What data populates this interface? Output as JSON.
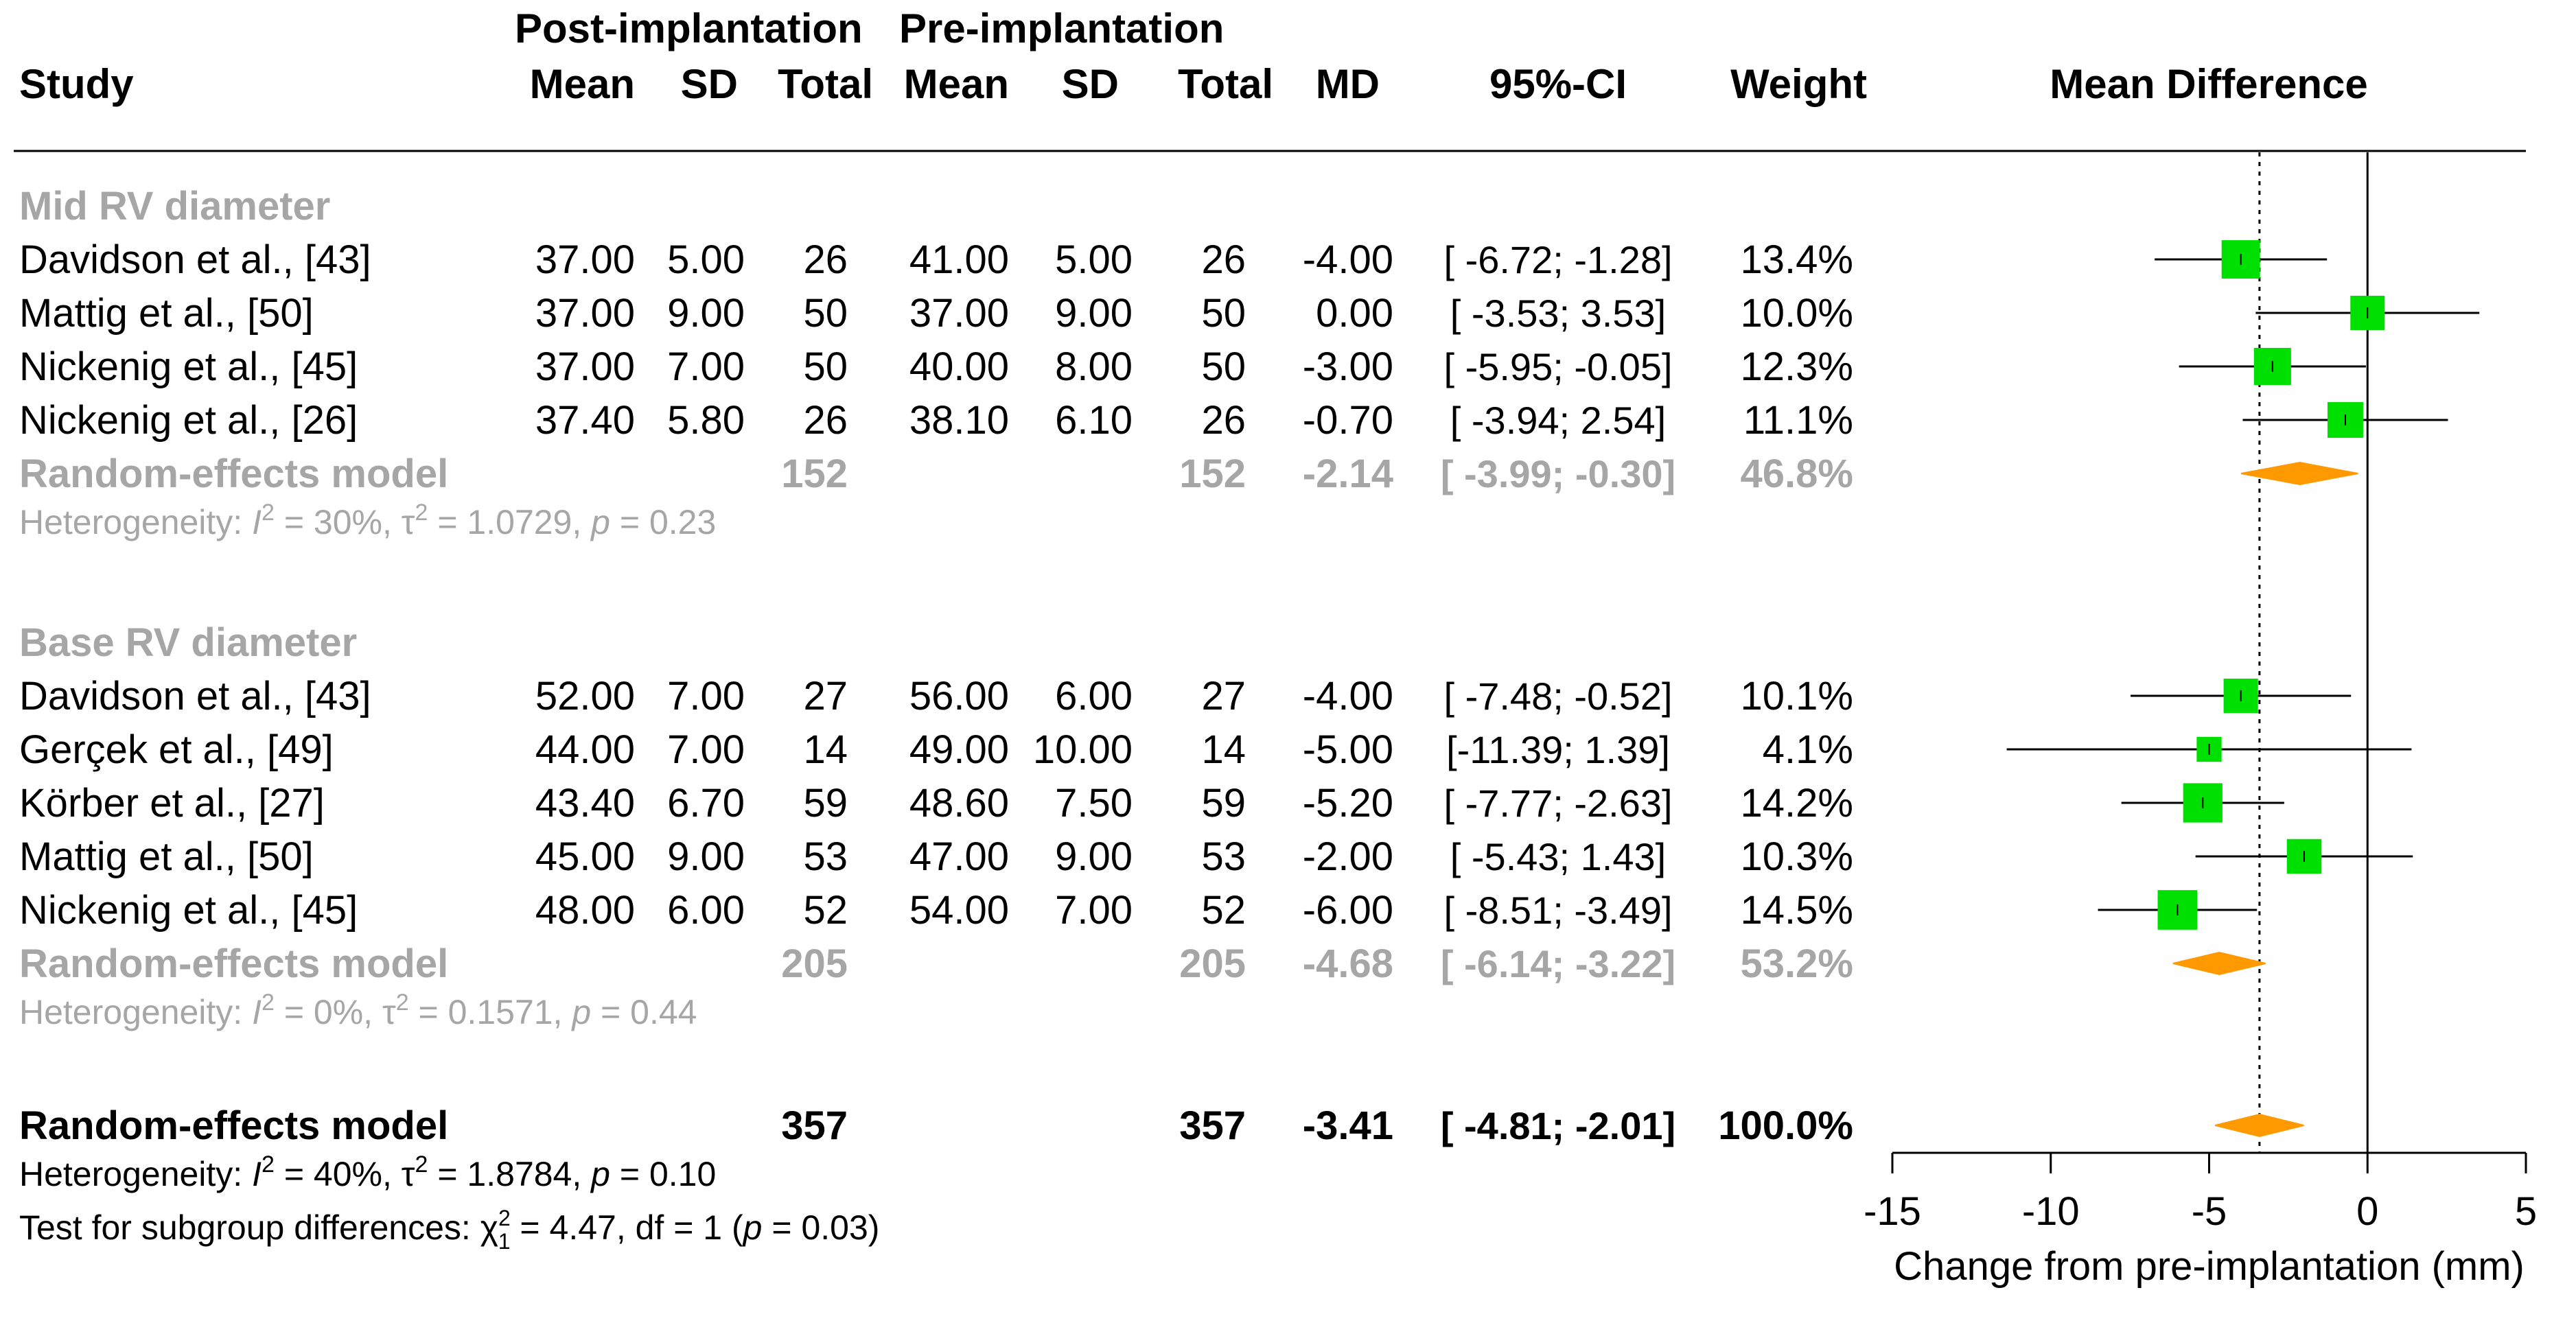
{
  "header": {
    "group_post": "Post-implantation",
    "group_pre": "Pre-implantation",
    "study": "Study",
    "mean_post": "Mean",
    "sd_post": "SD",
    "total_post": "Total",
    "mean_pre": "Mean",
    "sd_pre": "SD",
    "total_pre": "Total",
    "md": "MD",
    "ci": "95%-CI",
    "weight": "Weight",
    "plot_title": "Mean Difference"
  },
  "chart_data": {
    "type": "forest",
    "xlabel": "Change from pre-implantation (mm)",
    "xlim": [
      -15,
      5
    ],
    "xticks": [
      -15,
      -10,
      -5,
      0,
      5
    ],
    "null_line": 0,
    "overall_line": -3.41,
    "colors": {
      "study": "#00e000",
      "pooled": "#ff9900",
      "subgroup_text": "#a6a6a6",
      "text": "#000000"
    },
    "subgroups": [
      {
        "name": "Mid RV diameter",
        "studies": [
          {
            "study": "Davidson et al., [43]",
            "mean_post": "37.00",
            "sd_post": "5.00",
            "total_post": "26",
            "mean_pre": "41.00",
            "sd_pre": "5.00",
            "total_pre": "26",
            "md_text": "-4.00",
            "ci_text": "[ -6.72; -1.28]",
            "weight_text": "13.4%",
            "md": -4.0,
            "lo": -6.72,
            "hi": -1.28,
            "weight": 13.4
          },
          {
            "study": "Mattig et al., [50]",
            "mean_post": "37.00",
            "sd_post": "9.00",
            "total_post": "50",
            "mean_pre": "37.00",
            "sd_pre": "9.00",
            "total_pre": "50",
            "md_text": "0.00",
            "ci_text": "[ -3.53; 3.53]",
            "weight_text": "10.0%",
            "md": 0.0,
            "lo": -3.53,
            "hi": 3.53,
            "weight": 10.0
          },
          {
            "study": "Nickenig et al., [45]",
            "mean_post": "37.00",
            "sd_post": "7.00",
            "total_post": "50",
            "mean_pre": "40.00",
            "sd_pre": "8.00",
            "total_pre": "50",
            "md_text": "-3.00",
            "ci_text": "[ -5.95; -0.05]",
            "weight_text": "12.3%",
            "md": -3.0,
            "lo": -5.95,
            "hi": -0.05,
            "weight": 12.3
          },
          {
            "study": "Nickenig et al., [26]",
            "mean_post": "37.40",
            "sd_post": "5.80",
            "total_post": "26",
            "mean_pre": "38.10",
            "sd_pre": "6.10",
            "total_pre": "26",
            "md_text": "-0.70",
            "ci_text": "[ -3.94; 2.54]",
            "weight_text": "11.1%",
            "md": -0.7,
            "lo": -3.94,
            "hi": 2.54,
            "weight": 11.1
          }
        ],
        "pooled": {
          "label": "Random-effects model",
          "total_post": "152",
          "total_pre": "152",
          "md_text": "-2.14",
          "ci_text": "[ -3.99; -0.30]",
          "weight_text": "46.8%",
          "md": -2.14,
          "lo": -3.99,
          "hi": -0.3
        },
        "heterogeneity": {
          "prefix": "Heterogeneity: ",
          "i2": "30%",
          "tau2": "1.0729",
          "p": "0.23"
        }
      },
      {
        "name": "Base RV diameter",
        "studies": [
          {
            "study": "Davidson et al., [43]",
            "mean_post": "52.00",
            "sd_post": "7.00",
            "total_post": "27",
            "mean_pre": "56.00",
            "sd_pre": "6.00",
            "total_pre": "27",
            "md_text": "-4.00",
            "ci_text": "[ -7.48; -0.52]",
            "weight_text": "10.1%",
            "md": -4.0,
            "lo": -7.48,
            "hi": -0.52,
            "weight": 10.1
          },
          {
            "study": "Gerçek et al., [49]",
            "mean_post": "44.00",
            "sd_post": "7.00",
            "total_post": "14",
            "mean_pre": "49.00",
            "sd_pre": "10.00",
            "total_pre": "14",
            "md_text": "-5.00",
            "ci_text": "[-11.39; 1.39]",
            "weight_text": "4.1%",
            "md": -5.0,
            "lo": -11.39,
            "hi": 1.39,
            "weight": 4.1
          },
          {
            "study": "Körber et al., [27]",
            "mean_post": "43.40",
            "sd_post": "6.70",
            "total_post": "59",
            "mean_pre": "48.60",
            "sd_pre": "7.50",
            "total_pre": "59",
            "md_text": "-5.20",
            "ci_text": "[ -7.77; -2.63]",
            "weight_text": "14.2%",
            "md": -5.2,
            "lo": -7.77,
            "hi": -2.63,
            "weight": 14.2
          },
          {
            "study": "Mattig et al., [50]",
            "mean_post": "45.00",
            "sd_post": "9.00",
            "total_post": "53",
            "mean_pre": "47.00",
            "sd_pre": "9.00",
            "total_pre": "53",
            "md_text": "-2.00",
            "ci_text": "[ -5.43; 1.43]",
            "weight_text": "10.3%",
            "md": -2.0,
            "lo": -5.43,
            "hi": 1.43,
            "weight": 10.3
          },
          {
            "study": "Nickenig et al., [45]",
            "mean_post": "48.00",
            "sd_post": "6.00",
            "total_post": "52",
            "mean_pre": "54.00",
            "sd_pre": "7.00",
            "total_pre": "52",
            "md_text": "-6.00",
            "ci_text": "[ -8.51; -3.49]",
            "weight_text": "14.5%",
            "md": -6.0,
            "lo": -8.51,
            "hi": -3.49,
            "weight": 14.5
          }
        ],
        "pooled": {
          "label": "Random-effects model",
          "total_post": "205",
          "total_pre": "205",
          "md_text": "-4.68",
          "ci_text": "[ -6.14; -3.22]",
          "weight_text": "53.2%",
          "md": -4.68,
          "lo": -6.14,
          "hi": -3.22
        },
        "heterogeneity": {
          "prefix": "Heterogeneity: ",
          "i2": "0%",
          "tau2": "0.1571",
          "p": "0.44"
        }
      }
    ],
    "overall": {
      "label": "Random-effects model",
      "total_post": "357",
      "total_pre": "357",
      "md_text": "-3.41",
      "ci_text": "[ -4.81; -2.01]",
      "weight_text": "100.0%",
      "md": -3.41,
      "lo": -4.81,
      "hi": -2.01,
      "heterogeneity": {
        "prefix": "Heterogeneity: ",
        "i2": "40%",
        "tau2": "1.8784",
        "p": "0.10"
      },
      "subgroup_test": {
        "prefix": "Test for subgroup differences: ",
        "chi2": "4.47",
        "df": "1",
        "p": "0.03"
      }
    }
  }
}
